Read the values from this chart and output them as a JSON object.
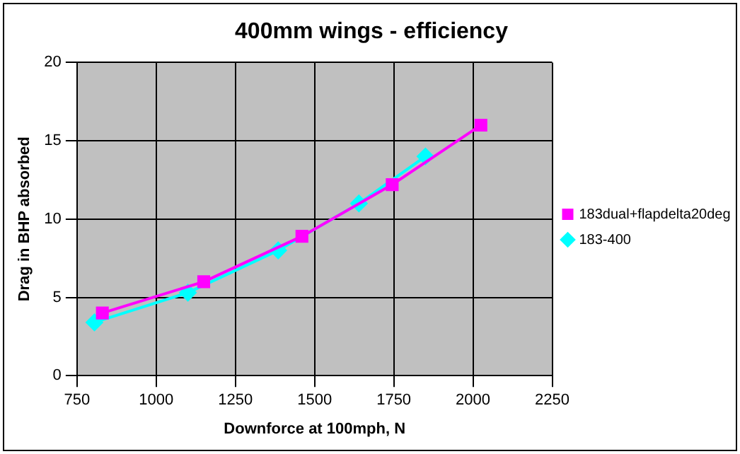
{
  "chart_data": {
    "type": "line",
    "title": "400mm wings - efficiency",
    "xlabel": "Downforce at 100mph, N",
    "ylabel": "Drag in BHP absorbed",
    "xlim": [
      750,
      2250
    ],
    "xticks": [
      750,
      1000,
      1250,
      1500,
      1750,
      2000,
      2250
    ],
    "ylim": [
      0,
      20
    ],
    "yticks": [
      0,
      5,
      10,
      15,
      20
    ],
    "grid": true,
    "legend": "right",
    "series": [
      {
        "name": "183dual+flapdelta20deg",
        "color": "#ff00ff",
        "marker": "square",
        "x": [
          830,
          1150,
          1460,
          1745,
          2025
        ],
        "values": [
          4.0,
          6.0,
          8.9,
          12.2,
          16.0
        ]
      },
      {
        "name": "183-400",
        "color": "#00ffff",
        "marker": "diamond",
        "x": [
          805,
          1100,
          1385,
          1640,
          1850
        ],
        "values": [
          3.4,
          5.3,
          8.0,
          11.0,
          14.0
        ]
      }
    ]
  }
}
